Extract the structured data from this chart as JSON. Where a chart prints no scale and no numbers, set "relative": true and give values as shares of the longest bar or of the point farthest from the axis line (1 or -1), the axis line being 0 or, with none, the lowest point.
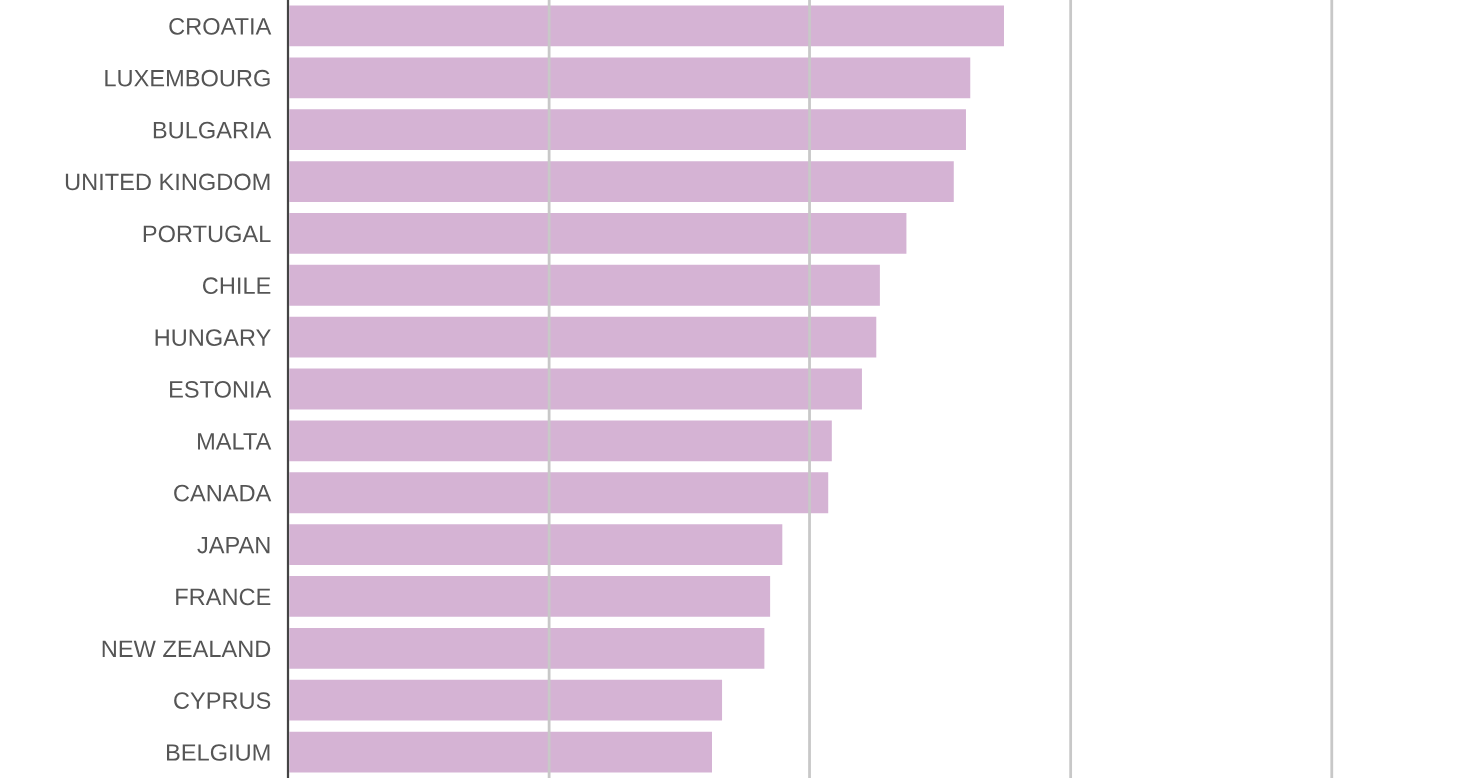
{
  "chart_data": {
    "type": "bar",
    "orientation": "horizontal",
    "relative": true,
    "categories": [
      "CROATIA",
      "LUXEMBOURG",
      "BULGARIA",
      "UNITED KINGDOM",
      "PORTUGAL",
      "CHILE",
      "HUNGARY",
      "ESTONIA",
      "MALTA",
      "CANADA",
      "JAPAN",
      "FRANCE",
      "NEW ZEALAND",
      "CYPRUS",
      "BELGIUM"
    ],
    "values": [
      1.0,
      0.953,
      0.947,
      0.93,
      0.864,
      0.827,
      0.822,
      0.802,
      0.76,
      0.755,
      0.691,
      0.674,
      0.666,
      0.607,
      0.593
    ],
    "color": "#d5b3d4",
    "ref_lines": [
      {
        "axis": "x",
        "value": 0.364,
        "color": "#c8c8c8"
      },
      {
        "axis": "x",
        "value": 0.727,
        "color": "#c8c8c8"
      },
      {
        "axis": "x",
        "value": 1.091,
        "color": "#c8c8c8"
      },
      {
        "axis": "x",
        "value": 1.455,
        "color": "#c8c8c8"
      }
    ]
  }
}
